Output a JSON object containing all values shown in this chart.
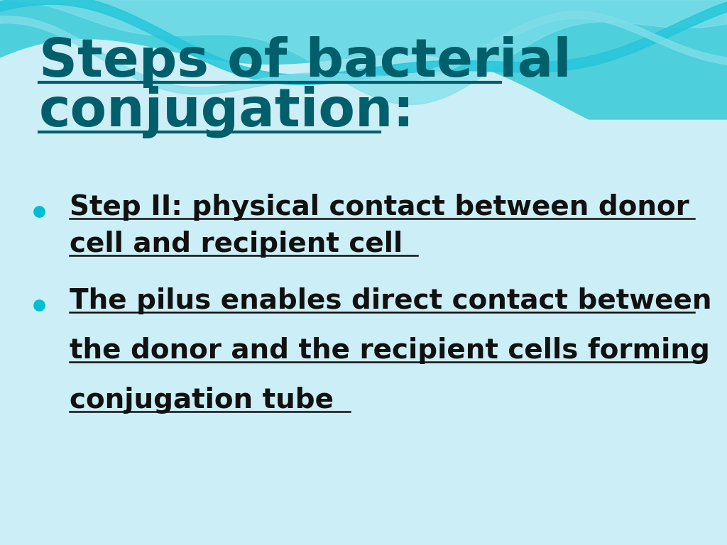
{
  "bg_color": "#cceef7",
  "title_line1": "Steps of bacterial",
  "title_line2": "conjugation:",
  "title_color": "#005f6b",
  "title_fontsize": 54,
  "bullet_color": "#00bcd4",
  "text_color": "#111111",
  "bullet_fontsize": 28,
  "bullet1_line1": "Step II: physical contact between donor",
  "bullet1_line2": "cell and recipient cell",
  "bullet2_line1": "The pilus enables direct contact between",
  "bullet2_line2": "the donor and the recipient cells forming",
  "bullet2_line3": "conjugation tube"
}
